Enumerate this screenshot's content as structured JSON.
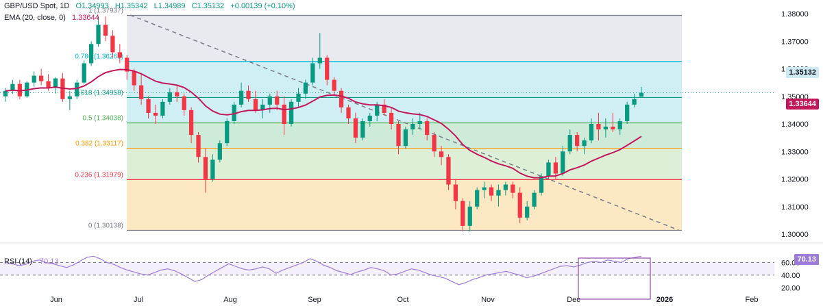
{
  "header": {
    "symbol": "GBP/USD Spot, 1D",
    "open": "O1.34993",
    "high": "H1.35342",
    "low": "L1.34989",
    "close": "C1.35132",
    "change": "+0.00139 (+0.10%)",
    "ema_label": "EMA (20, close, 0)",
    "ema_value": "1.33644"
  },
  "colors": {
    "up": "#089981",
    "down": "#f23645",
    "ema": "#c2185b",
    "rsi": "#9c7cd6",
    "trendline": "#787b86"
  },
  "chart_data": [
    {
      "type": "candlestick",
      "title": "GBP/USD Spot, 1D",
      "xlabel": "",
      "ylabel": "",
      "x_tick_labels": [
        "Jun",
        "Jul",
        "Aug",
        "Sep",
        "Oct",
        "Nov",
        "Dec",
        "2026",
        "Feb"
      ],
      "y_tick_labels": [
        "1.38000",
        "1.37000",
        "1.36000",
        "1.35000",
        "1.34000",
        "1.33000",
        "1.32000",
        "1.31000",
        "1.30000"
      ],
      "ylim": [
        1.3,
        1.38
      ],
      "last_price": "1.35132",
      "ema_last": "1.33644",
      "fibonacci": [
        {
          "level": "1",
          "value": "1.37937",
          "fill": "#e8eaf0"
        },
        {
          "level": "0.786",
          "value": "1.36268",
          "fill": "#cfeff4"
        },
        {
          "level": "0.618",
          "value": "1.34958",
          "fill": "#cfeff4"
        },
        {
          "level": "0.5",
          "value": "1.34038",
          "fill": "#cdebd8"
        },
        {
          "level": "0.382",
          "value": "1.33117",
          "fill": "#ddefd7"
        },
        {
          "level": "0.236",
          "value": "1.31979",
          "fill": "#fde8c4"
        },
        {
          "level": "0",
          "value": "1.30138",
          "fill": "#f9d4d8"
        }
      ],
      "candles_approx": [
        [
          1.35,
          1.353,
          1.348,
          1.352
        ],
        [
          1.352,
          1.356,
          1.351,
          1.3545
        ],
        [
          1.3545,
          1.356,
          1.349,
          1.35
        ],
        [
          1.35,
          1.3555,
          1.3495,
          1.355
        ],
        [
          1.355,
          1.359,
          1.3535,
          1.3575
        ],
        [
          1.3575,
          1.36,
          1.354,
          1.3555
        ],
        [
          1.3555,
          1.358,
          1.352,
          1.353
        ],
        [
          1.353,
          1.357,
          1.351,
          1.3565
        ],
        [
          1.3565,
          1.3585,
          1.348,
          1.349
        ],
        [
          1.349,
          1.352,
          1.345,
          1.35
        ],
        [
          1.35,
          1.356,
          1.349,
          1.355
        ],
        [
          1.355,
          1.363,
          1.3545,
          1.362
        ],
        [
          1.362,
          1.37,
          1.361,
          1.369
        ],
        [
          1.369,
          1.379,
          1.368,
          1.376
        ],
        [
          1.376,
          1.379,
          1.37,
          1.372
        ],
        [
          1.372,
          1.374,
          1.364,
          1.366
        ],
        [
          1.366,
          1.369,
          1.362,
          1.364
        ],
        [
          1.364,
          1.365,
          1.356,
          1.359
        ],
        [
          1.359,
          1.36,
          1.352,
          1.354
        ],
        [
          1.354,
          1.358,
          1.347,
          1.349
        ],
        [
          1.349,
          1.35,
          1.342,
          1.344
        ],
        [
          1.344,
          1.347,
          1.34,
          1.343
        ],
        [
          1.343,
          1.349,
          1.342,
          1.348
        ],
        [
          1.348,
          1.353,
          1.347,
          1.3515
        ],
        [
          1.3515,
          1.354,
          1.348,
          1.35
        ],
        [
          1.35,
          1.351,
          1.343,
          1.345
        ],
        [
          1.345,
          1.346,
          1.333,
          1.336
        ],
        [
          1.336,
          1.337,
          1.326,
          1.328
        ],
        [
          1.328,
          1.331,
          1.315,
          1.32
        ],
        [
          1.32,
          1.329,
          1.319,
          1.327
        ],
        [
          1.327,
          1.334,
          1.326,
          1.333
        ],
        [
          1.333,
          1.342,
          1.332,
          1.341
        ],
        [
          1.341,
          1.348,
          1.34,
          1.347
        ],
        [
          1.347,
          1.355,
          1.346,
          1.352
        ],
        [
          1.352,
          1.354,
          1.348,
          1.349
        ],
        [
          1.349,
          1.352,
          1.344,
          1.345
        ],
        [
          1.345,
          1.349,
          1.342,
          1.347
        ],
        [
          1.347,
          1.351,
          1.344,
          1.35
        ],
        [
          1.35,
          1.352,
          1.345,
          1.347
        ],
        [
          1.347,
          1.35,
          1.336,
          1.34
        ],
        [
          1.34,
          1.349,
          1.339,
          1.348
        ],
        [
          1.348,
          1.353,
          1.346,
          1.351
        ],
        [
          1.351,
          1.356,
          1.349,
          1.355
        ],
        [
          1.355,
          1.364,
          1.354,
          1.362
        ],
        [
          1.362,
          1.373,
          1.36,
          1.364
        ],
        [
          1.364,
          1.365,
          1.354,
          1.356
        ],
        [
          1.356,
          1.357,
          1.35,
          1.352
        ],
        [
          1.352,
          1.353,
          1.344,
          1.346
        ],
        [
          1.346,
          1.347,
          1.34,
          1.342
        ],
        [
          1.342,
          1.344,
          1.333,
          1.335
        ],
        [
          1.335,
          1.342,
          1.334,
          1.341
        ],
        [
          1.341,
          1.344,
          1.339,
          1.343
        ],
        [
          1.343,
          1.348,
          1.341,
          1.347
        ],
        [
          1.347,
          1.349,
          1.343,
          1.344
        ],
        [
          1.344,
          1.346,
          1.338,
          1.34
        ],
        [
          1.34,
          1.341,
          1.329,
          1.332
        ],
        [
          1.332,
          1.339,
          1.331,
          1.338
        ],
        [
          1.338,
          1.342,
          1.336,
          1.34
        ],
        [
          1.34,
          1.344,
          1.338,
          1.341
        ],
        [
          1.341,
          1.342,
          1.334,
          1.336
        ],
        [
          1.336,
          1.337,
          1.328,
          1.33
        ],
        [
          1.33,
          1.332,
          1.325,
          1.328
        ],
        [
          1.328,
          1.329,
          1.316,
          1.318
        ],
        [
          1.318,
          1.32,
          1.309,
          1.312
        ],
        [
          1.312,
          1.313,
          1.301,
          1.303
        ],
        [
          1.303,
          1.312,
          1.301,
          1.31
        ],
        [
          1.31,
          1.317,
          1.309,
          1.316
        ],
        [
          1.316,
          1.319,
          1.313,
          1.317
        ],
        [
          1.317,
          1.318,
          1.312,
          1.314
        ],
        [
          1.314,
          1.318,
          1.31,
          1.316
        ],
        [
          1.316,
          1.319,
          1.314,
          1.318
        ],
        [
          1.318,
          1.319,
          1.313,
          1.315
        ],
        [
          1.315,
          1.317,
          1.304,
          1.306
        ],
        [
          1.306,
          1.312,
          1.305,
          1.31
        ],
        [
          1.31,
          1.316,
          1.309,
          1.315
        ],
        [
          1.315,
          1.322,
          1.314,
          1.321
        ],
        [
          1.321,
          1.327,
          1.32,
          1.326
        ],
        [
          1.326,
          1.328,
          1.32,
          1.322
        ],
        [
          1.322,
          1.332,
          1.321,
          1.33
        ],
        [
          1.33,
          1.338,
          1.329,
          1.336
        ],
        [
          1.336,
          1.337,
          1.33,
          1.332
        ],
        [
          1.332,
          1.335,
          1.329,
          1.334
        ],
        [
          1.334,
          1.342,
          1.333,
          1.34
        ],
        [
          1.34,
          1.344,
          1.334,
          1.338
        ],
        [
          1.338,
          1.342,
          1.335,
          1.339
        ],
        [
          1.339,
          1.344,
          1.337,
          1.338
        ],
        [
          1.338,
          1.342,
          1.336,
          1.341
        ],
        [
          1.341,
          1.348,
          1.34,
          1.347
        ],
        [
          1.347,
          1.351,
          1.346,
          1.349
        ],
        [
          1.3499,
          1.3534,
          1.3499,
          1.3513
        ]
      ]
    },
    {
      "type": "line",
      "title": "RSI (14)",
      "value_label": "70.13",
      "y_tick_labels": [
        "60.00",
        "40.00",
        "20.00"
      ],
      "ylim": [
        15,
        80
      ],
      "band": [
        40,
        60
      ],
      "values_approx": [
        60,
        58,
        55,
        57,
        62,
        64,
        60,
        58,
        55,
        52,
        56,
        62,
        68,
        70,
        66,
        60,
        57,
        52,
        48,
        45,
        42,
        40,
        44,
        48,
        50,
        47,
        42,
        36,
        30,
        33,
        40,
        46,
        52,
        58,
        54,
        50,
        48,
        50,
        53,
        50,
        43,
        48,
        52,
        56,
        60,
        66,
        62,
        56,
        52,
        47,
        44,
        41,
        45,
        48,
        52,
        50,
        47,
        40,
        42,
        46,
        50,
        48,
        44,
        40,
        38,
        35,
        30,
        25,
        28,
        33,
        36,
        40,
        42,
        44,
        46,
        43,
        40,
        36,
        38,
        42,
        46,
        50,
        54,
        55,
        53,
        56,
        60,
        62,
        60,
        64,
        62,
        60,
        66,
        68,
        70
      ]
    }
  ]
}
